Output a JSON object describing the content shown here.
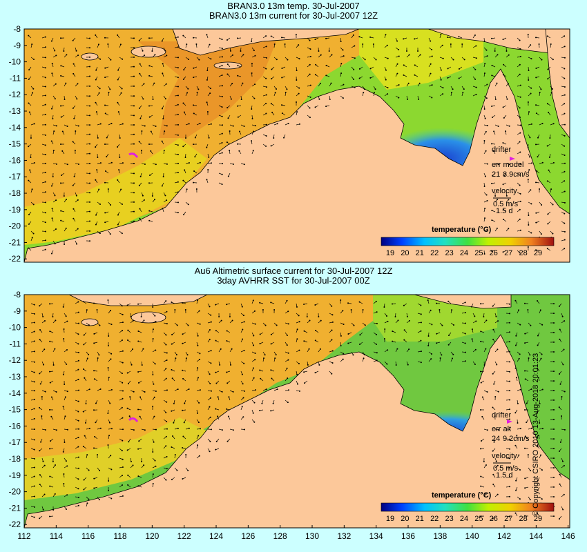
{
  "panels": [
    {
      "title_line1": "BRAN3.0 13m temp. 30-Jul-2007",
      "title_line2": "BRAN3.0 13m current for 30-Jul-2007 12Z",
      "drifter": {
        "label": "drifter",
        "err_label": "err model",
        "err_count": "21",
        "err_value": "8.9cm/s"
      },
      "velocity": {
        "label": "velocity",
        "speed": "0.5 m/s",
        "duration": "1.5 d"
      },
      "colorbar_title": "temperature (°C)",
      "colorbar_ticks": [
        "19",
        "20",
        "21",
        "22",
        "23",
        "24",
        "25",
        "26",
        "27",
        "28",
        "29"
      ]
    },
    {
      "title_line1": "Au6 Altimetric surface current for 30-Jul-2007 12Z",
      "title_line2": "3day AVHRR SST for 30-Jul-2007 00Z",
      "drifter": {
        "label": "drifter",
        "err_label": "err alt",
        "err_count": "24",
        "err_value": "9.2cm/s"
      },
      "velocity": {
        "label": "velocity",
        "speed": "0.5 m/s",
        "duration": "1.5 d"
      },
      "colorbar_title": "temperature (°C)",
      "colorbar_ticks": [
        "19",
        "20",
        "21",
        "22",
        "23",
        "24",
        "25",
        "26",
        "27",
        "28",
        "29"
      ]
    }
  ],
  "y_ticks": [
    "-8",
    "-9",
    "-10",
    "-11",
    "-12",
    "-13",
    "-14",
    "-15",
    "-16",
    "-17",
    "-18",
    "-19",
    "-20",
    "-21",
    "-22"
  ],
  "x_ticks": [
    "112",
    "114",
    "116",
    "118",
    "120",
    "122",
    "124",
    "126",
    "128",
    "130",
    "132",
    "134",
    "136",
    "138",
    "140",
    "142",
    "144",
    "146"
  ],
  "copyright": "© Copyright CSIRO 2010   13-Aug-2018 20:01:23",
  "colors": {
    "background": "#ccffff",
    "land": "#fcc89a",
    "ocean_warm": "#f4a23a",
    "ocean_mid": "#e8cc20",
    "ocean_cool": "#80d830",
    "ocean_cold": "#2a7ae8",
    "drifter": "#e020e0"
  }
}
